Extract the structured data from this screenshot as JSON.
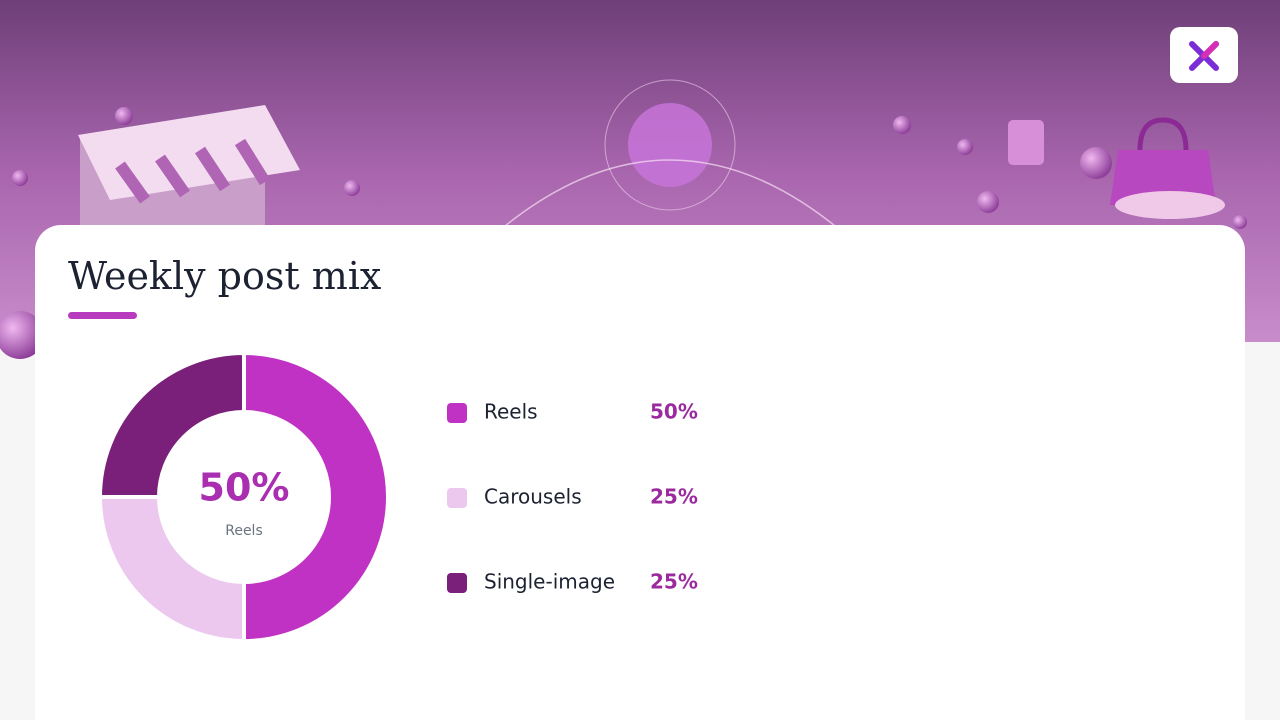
{
  "chart_data": {
    "type": "donut",
    "title": "Weekly post mix",
    "categories": [
      "Reels",
      "Carousels",
      "Single-image"
    ],
    "values": [
      50,
      25,
      25
    ],
    "value_labels": [
      "50%",
      "25%",
      "25%"
    ],
    "colors": [
      "#c032c4",
      "#ecc8ef",
      "#7a1f7a"
    ],
    "legend": "right"
  }
}
